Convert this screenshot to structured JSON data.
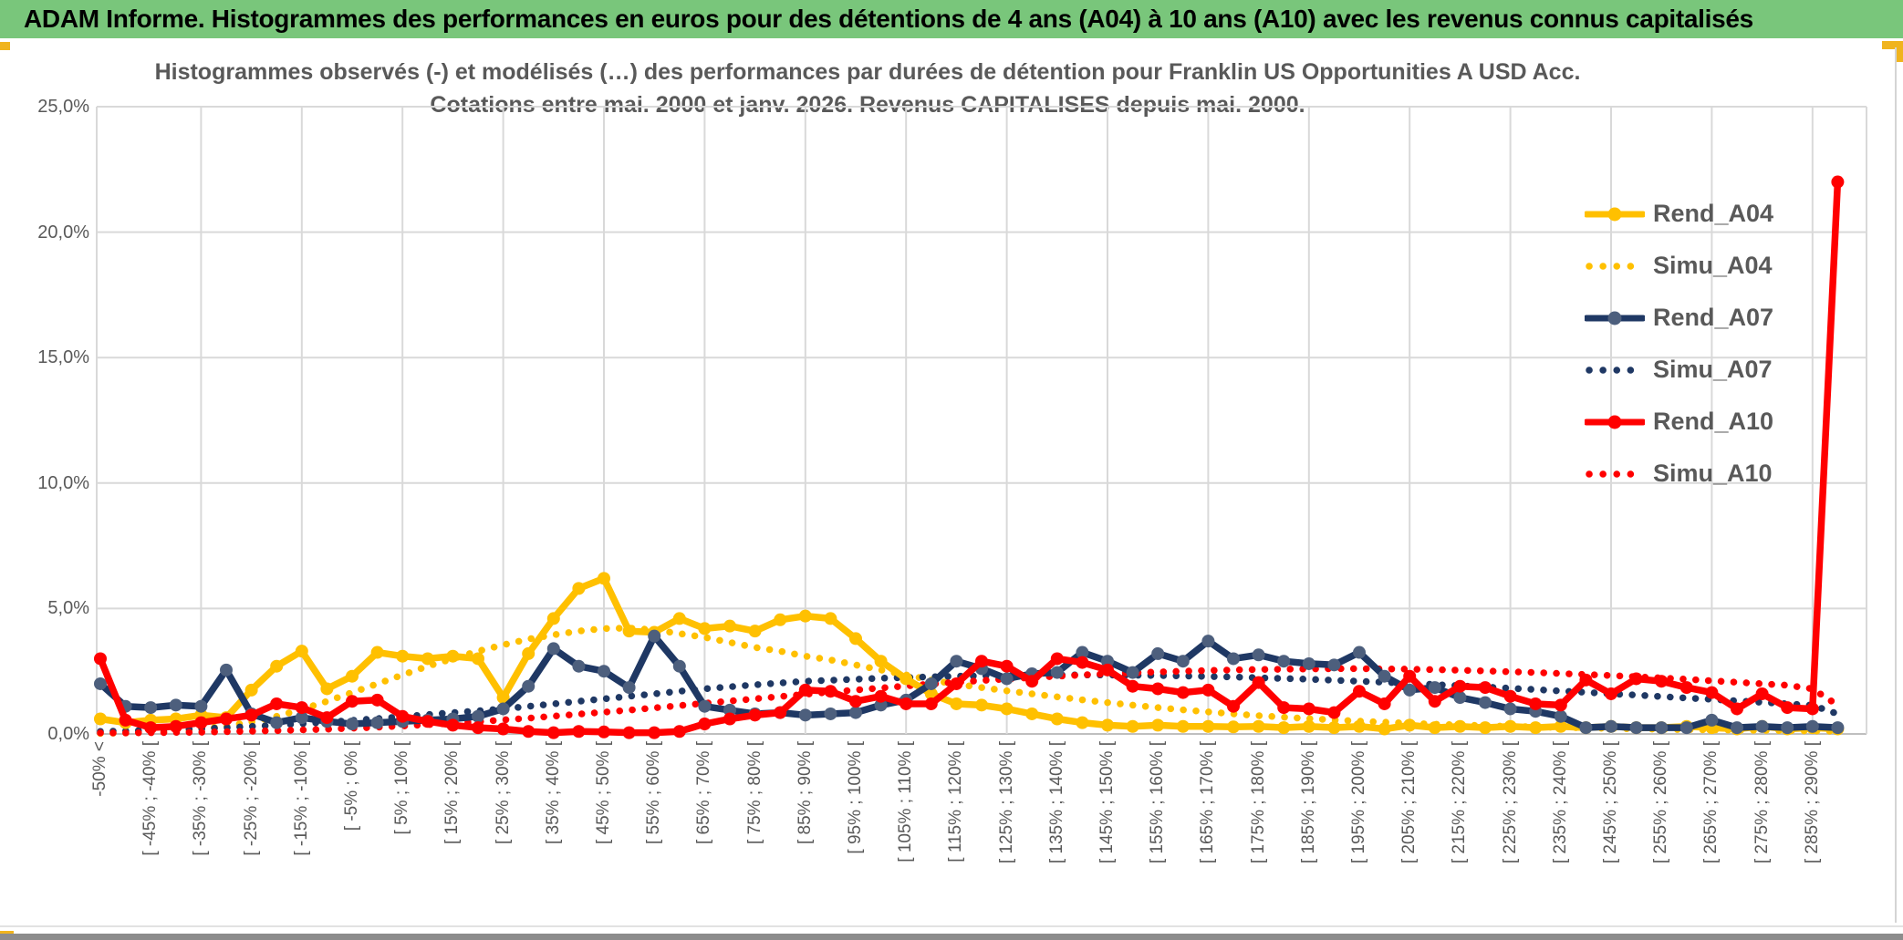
{
  "header": {
    "title": "ADAM Informe. Histogrammes des performances en euros pour des détentions de 4 ans (A04) à 10 ans (A10) avec les revenus connus capitalisés",
    "bg_color": "#79c67b",
    "accent_color": "#f0b41e"
  },
  "chart_title": {
    "line1": "Histogrammes observés (-) et modélisés (…) des performances par durées de détention pour Franklin US Opportunities A USD Acc.",
    "line2": "Cotations entre mai. 2000 et janv. 2026. Revenus CAPITALISES depuis mai. 2000."
  },
  "chart_data": {
    "type": "line",
    "title": "Histogrammes observés (-) et modélisés (…) des performances par durées de détention pour Franklin US Opportunities A USD Acc. Cotations entre mai. 2000 et janv. 2026. Revenus CAPITALISES depuis mai. 2000.",
    "ylim": [
      0,
      25
    ],
    "ytick_labels": [
      "0,0%",
      "5,0%",
      "10,0%",
      "15,0%",
      "20,0%",
      "25,0%"
    ],
    "grid": true,
    "gridline_color": "#d9d9d9",
    "axis_text_color": "#595959",
    "legend_position": "inside-top-right",
    "categories": [
      "-50% <",
      "",
      "[ -45% ; -40% [",
      "",
      "[ -35% ; -30% [",
      "",
      "[ -25% ; -20% [",
      "",
      "[ -15% ; -10% [",
      "",
      "[ -5% ; 0% [",
      "",
      "[ 5% ; 10% [",
      "",
      "[ 15% ; 20% [",
      "",
      "[ 25% ; 30% [",
      "",
      "[ 35% ; 40% [",
      "",
      "[ 45% ; 50% [",
      "",
      "[ 55% ; 60% [",
      "",
      "[ 65% ; 70% [",
      "",
      "[ 75% ; 80% [",
      "",
      "[ 85% ; 90% [",
      "",
      "[ 95% ; 100% [",
      "",
      "[ 105% ; 110% [",
      "",
      "[ 115% ; 120% [",
      "",
      "[ 125% ; 130% [",
      "",
      "[ 135% ; 140% [",
      "",
      "[ 145% ; 150% [",
      "",
      "[ 155% ; 160% [",
      "",
      "[ 165% ; 170% [",
      "",
      "[ 175% ; 180% [",
      "",
      "[ 185% ; 190% [",
      "",
      "[ 195% ; 200% [",
      "",
      "[ 205% ; 210% [",
      "",
      "[ 215% ; 220% [",
      "",
      "[ 225% ; 230% [",
      "",
      "[ 235% ; 240% [",
      "",
      "[ 245% ; 250% [",
      "",
      "[ 255% ; 260% [",
      "",
      "[ 265% ; 270% [",
      "",
      "[ 275% ; 280% [",
      "",
      "[ 285% ; 290% [",
      ""
    ],
    "series": [
      {
        "name": "Rend_A04",
        "style": "solid",
        "color": "#FFC000",
        "marker_color": "#FFC000",
        "values": [
          0.6,
          0.45,
          0.55,
          0.6,
          0.75,
          0.65,
          1.75,
          2.7,
          3.3,
          1.8,
          2.3,
          3.25,
          3.1,
          3.0,
          3.1,
          3.0,
          1.45,
          3.2,
          4.6,
          5.8,
          6.2,
          4.1,
          4.05,
          4.6,
          4.2,
          4.3,
          4.1,
          4.55,
          4.7,
          4.6,
          3.8,
          2.9,
          2.2,
          1.6,
          1.2,
          1.15,
          1.0,
          0.8,
          0.6,
          0.45,
          0.35,
          0.3,
          0.35,
          0.3,
          0.3,
          0.28,
          0.3,
          0.25,
          0.3,
          0.25,
          0.3,
          0.2,
          0.35,
          0.25,
          0.3,
          0.25,
          0.3,
          0.25,
          0.3,
          0.25,
          0.3,
          0.25,
          0.25,
          0.3,
          0.25,
          0.2,
          0.3,
          0.2,
          0.25,
          0.2
        ]
      },
      {
        "name": "Simu_A04",
        "style": "dotted",
        "color": "#FFC000",
        "marker_color": "#FFC000",
        "values": [
          0.02,
          0.04,
          0.07,
          0.12,
          0.2,
          0.32,
          0.48,
          0.7,
          0.98,
          1.3,
          1.65,
          2.0,
          2.35,
          2.7,
          3.0,
          3.3,
          3.55,
          3.78,
          3.95,
          4.1,
          4.2,
          4.22,
          4.15,
          4.0,
          3.85,
          3.65,
          3.45,
          3.3,
          3.1,
          2.95,
          2.75,
          2.55,
          2.35,
          2.15,
          1.98,
          1.85,
          1.72,
          1.6,
          1.48,
          1.36,
          1.25,
          1.15,
          1.05,
          0.96,
          0.88,
          0.8,
          0.73,
          0.67,
          0.61,
          0.56,
          0.51,
          0.47,
          0.43,
          0.39,
          0.36,
          0.33,
          0.3,
          0.28,
          0.26,
          0.24,
          0.22,
          0.2,
          0.19,
          0.17,
          0.16,
          0.15,
          0.14,
          0.13,
          0.12,
          0.11
        ]
      },
      {
        "name": "Rend_A07",
        "style": "solid",
        "color": "#1F3864",
        "marker_color": "#4d5f7d",
        "values": [
          2.0,
          1.1,
          1.05,
          1.15,
          1.1,
          2.55,
          0.8,
          0.45,
          0.65,
          0.5,
          0.4,
          0.45,
          0.5,
          0.55,
          0.6,
          0.7,
          1.0,
          1.9,
          3.4,
          2.7,
          2.5,
          1.85,
          3.9,
          2.7,
          1.1,
          0.95,
          0.8,
          0.85,
          0.75,
          0.8,
          0.85,
          1.15,
          1.35,
          2.0,
          2.9,
          2.6,
          2.2,
          2.4,
          2.45,
          3.25,
          2.9,
          2.45,
          3.2,
          2.9,
          3.7,
          3.0,
          3.15,
          2.9,
          2.8,
          2.75,
          3.25,
          2.3,
          1.75,
          1.85,
          1.45,
          1.25,
          1.0,
          0.9,
          0.7,
          0.25,
          0.3,
          0.25,
          0.25,
          0.25,
          0.55,
          0.25,
          0.3,
          0.25,
          0.3,
          0.25
        ]
      },
      {
        "name": "Simu_A07",
        "style": "dotted",
        "color": "#1F3864",
        "marker_color": "#1F3864",
        "values": [
          0.1,
          0.12,
          0.15,
          0.18,
          0.21,
          0.25,
          0.3,
          0.35,
          0.41,
          0.47,
          0.54,
          0.61,
          0.69,
          0.77,
          0.85,
          0.92,
          1.0,
          1.1,
          1.2,
          1.3,
          1.4,
          1.5,
          1.6,
          1.7,
          1.8,
          1.88,
          1.96,
          2.03,
          2.1,
          2.14,
          2.18,
          2.22,
          2.25,
          2.28,
          2.3,
          2.32,
          2.33,
          2.34,
          2.35,
          2.35,
          2.35,
          2.34,
          2.33,
          2.31,
          2.29,
          2.27,
          2.24,
          2.21,
          2.18,
          2.14,
          2.1,
          2.06,
          2.02,
          1.97,
          1.92,
          1.87,
          1.82,
          1.77,
          1.71,
          1.66,
          1.6,
          1.55,
          1.49,
          1.43,
          1.38,
          1.32,
          1.26,
          1.2,
          1.14,
          0.8
        ]
      },
      {
        "name": "Rend_A10",
        "style": "solid",
        "color": "#FF0000",
        "marker_color": "#FF0000",
        "values": [
          3.0,
          0.55,
          0.25,
          0.3,
          0.45,
          0.6,
          0.75,
          1.2,
          1.05,
          0.65,
          1.3,
          1.35,
          0.7,
          0.5,
          0.35,
          0.25,
          0.2,
          0.1,
          0.05,
          0.1,
          0.08,
          0.05,
          0.05,
          0.1,
          0.4,
          0.6,
          0.75,
          0.85,
          1.75,
          1.7,
          1.3,
          1.5,
          1.2,
          1.2,
          2.0,
          2.9,
          2.7,
          2.1,
          3.0,
          2.85,
          2.55,
          1.9,
          1.8,
          1.65,
          1.75,
          1.1,
          2.05,
          1.05,
          1.0,
          0.85,
          1.7,
          1.2,
          2.3,
          1.3,
          1.9,
          1.85,
          1.5,
          1.2,
          1.15,
          2.15,
          1.6,
          2.2,
          2.1,
          1.85,
          1.65,
          1.0,
          1.6,
          1.05,
          1.0,
          22.0
        ]
      },
      {
        "name": "Simu_A10",
        "style": "dotted",
        "color": "#FF0000",
        "marker_color": "#FF0000",
        "values": [
          0.04,
          0.04,
          0.05,
          0.06,
          0.07,
          0.09,
          0.11,
          0.13,
          0.16,
          0.19,
          0.23,
          0.27,
          0.32,
          0.37,
          0.43,
          0.49,
          0.56,
          0.63,
          0.71,
          0.79,
          0.87,
          0.95,
          1.04,
          1.13,
          1.22,
          1.31,
          1.4,
          1.49,
          1.58,
          1.67,
          1.75,
          1.83,
          1.91,
          1.99,
          2.06,
          2.13,
          2.19,
          2.25,
          2.3,
          2.35,
          2.4,
          2.44,
          2.47,
          2.5,
          2.53,
          2.55,
          2.57,
          2.58,
          2.59,
          2.6,
          2.6,
          2.59,
          2.58,
          2.56,
          2.54,
          2.51,
          2.48,
          2.45,
          2.41,
          2.37,
          2.33,
          2.28,
          2.23,
          2.18,
          2.12,
          2.06,
          2.0,
          1.94,
          1.8,
          1.15
        ]
      }
    ]
  }
}
